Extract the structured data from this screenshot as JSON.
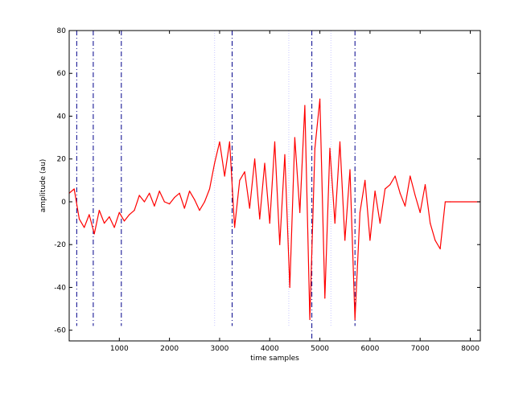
{
  "chart_data": {
    "type": "line",
    "title": "",
    "xlabel": "time samples",
    "ylabel": "amplitude (au)",
    "xlim": [
      0,
      8200
    ],
    "ylim": [
      -65,
      80
    ],
    "xticks": [
      1000,
      2000,
      3000,
      4000,
      5000,
      6000,
      7000,
      8000
    ],
    "yticks": [
      -60,
      -40,
      -20,
      0,
      20,
      40,
      60,
      80
    ],
    "grid": false,
    "legend": "none",
    "series": [
      {
        "color": "#ff0000",
        "x": [
          0,
          100,
          200,
          300,
          400,
          500,
          600,
          700,
          800,
          900,
          1000,
          1100,
          1200,
          1300,
          1400,
          1500,
          1600,
          1700,
          1800,
          1900,
          2000,
          2100,
          2200,
          2300,
          2400,
          2500,
          2600,
          2700,
          2800,
          2900,
          3000,
          3100,
          3200,
          3300,
          3400,
          3500,
          3600,
          3700,
          3800,
          3900,
          4000,
          4100,
          4200,
          4300,
          4400,
          4500,
          4600,
          4700,
          4800,
          4900,
          5000,
          5100,
          5200,
          5300,
          5400,
          5500,
          5600,
          5700,
          5800,
          5900,
          6000,
          6100,
          6200,
          6300,
          6400,
          6500,
          6600,
          6700,
          6800,
          6900,
          7000,
          7100,
          7200,
          7300,
          7400,
          7500,
          7600,
          8200
        ],
        "y": [
          4,
          6,
          -8,
          -12,
          -6,
          -15,
          -4,
          -10,
          -7,
          -12,
          -5,
          -9,
          -6,
          -4,
          3,
          0,
          4,
          -2,
          5,
          0,
          -1,
          2,
          4,
          -3,
          5,
          1,
          -4,
          0,
          6,
          18,
          28,
          12,
          28,
          -12,
          10,
          14,
          -3,
          20,
          -8,
          18,
          -10,
          28,
          -20,
          22,
          -40,
          30,
          -5,
          45,
          -55,
          25,
          48,
          -45,
          25,
          -10,
          28,
          -18,
          15,
          -55,
          -5,
          10,
          -18,
          5,
          -10,
          6,
          8,
          12,
          4,
          -2,
          12,
          3,
          -5,
          8,
          -10,
          -18,
          -22,
          0,
          0,
          0
        ]
      }
    ],
    "markers": [
      {
        "x": 150,
        "color": "#00008b",
        "style": "dash-dot",
        "ymax": 80,
        "ymin": -58
      },
      {
        "x": 480,
        "color": "#00008b",
        "style": "dash-dot",
        "ymax": 80,
        "ymin": -58
      },
      {
        "x": 1040,
        "color": "#00008b",
        "style": "dash-dot",
        "ymax": 80,
        "ymin": -58
      },
      {
        "x": 2900,
        "color": "#c8c8ff",
        "style": "dotted",
        "ymax": 80,
        "ymin": -58
      },
      {
        "x": 3250,
        "color": "#00008b",
        "style": "dash-dot",
        "ymax": 80,
        "ymin": -58
      },
      {
        "x": 4380,
        "color": "#c8c8ff",
        "style": "dotted",
        "ymax": 80,
        "ymin": -58
      },
      {
        "x": 4840,
        "color": "#00008b",
        "style": "dash-dot",
        "ymax": 80,
        "ymin": -65
      },
      {
        "x": 5220,
        "color": "#c8c8ff",
        "style": "dotted",
        "ymax": 80,
        "ymin": -58
      },
      {
        "x": 5700,
        "color": "#00008b",
        "style": "dash-dot",
        "ymax": 80,
        "ymin": -58
      }
    ]
  }
}
